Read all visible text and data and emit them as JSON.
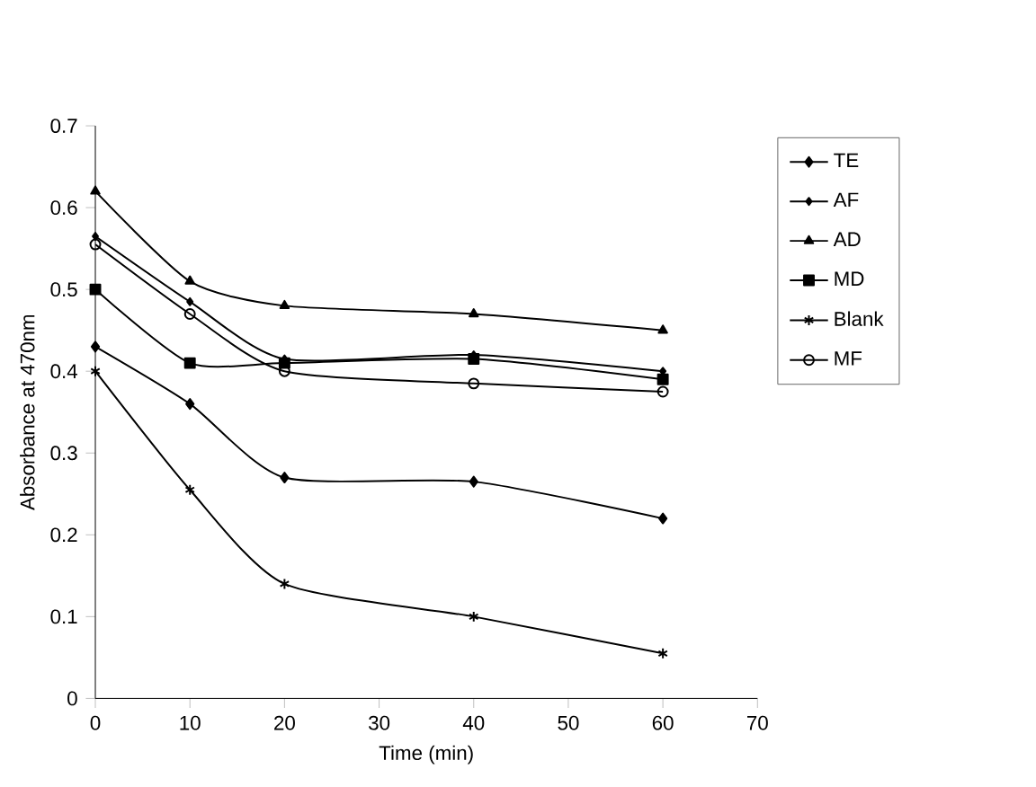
{
  "chart_data": {
    "type": "line",
    "xlabel": "Time (min)",
    "ylabel": "Absorbance at 470nm",
    "x": [
      0,
      10,
      20,
      40,
      60
    ],
    "series": [
      {
        "name": "TE",
        "color": "#000000",
        "marker": "diamond",
        "values": [
          0.43,
          0.36,
          0.27,
          0.265,
          0.22
        ]
      },
      {
        "name": "AF",
        "color": "#000000",
        "marker": "diamond",
        "values": [
          0.565,
          0.485,
          0.415,
          0.42,
          0.4
        ]
      },
      {
        "name": "AD",
        "color": "#000000",
        "marker": "triangle",
        "values": [
          0.62,
          0.51,
          0.48,
          0.47,
          0.45
        ]
      },
      {
        "name": "MD",
        "color": "#000000",
        "marker": "square",
        "values": [
          0.5,
          0.41,
          0.41,
          0.415,
          0.39
        ]
      },
      {
        "name": "Blank",
        "color": "#000000",
        "marker": "cross",
        "values": [
          0.4,
          0.255,
          0.14,
          0.1,
          0.055
        ]
      },
      {
        "name": "MF",
        "color": "#000000",
        "marker": "circle",
        "values": [
          0.555,
          0.47,
          0.4,
          0.385,
          0.375
        ]
      }
    ],
    "xlim": [
      0,
      70
    ],
    "xticks": [
      0,
      10,
      20,
      30,
      40,
      50,
      60,
      70
    ],
    "ylim": [
      0,
      0.7
    ],
    "yticks": [
      0,
      0.1,
      0.2,
      0.3,
      0.4,
      0.5,
      0.6,
      0.7
    ],
    "grid": false,
    "legend": "right",
    "line_style": "solid"
  }
}
